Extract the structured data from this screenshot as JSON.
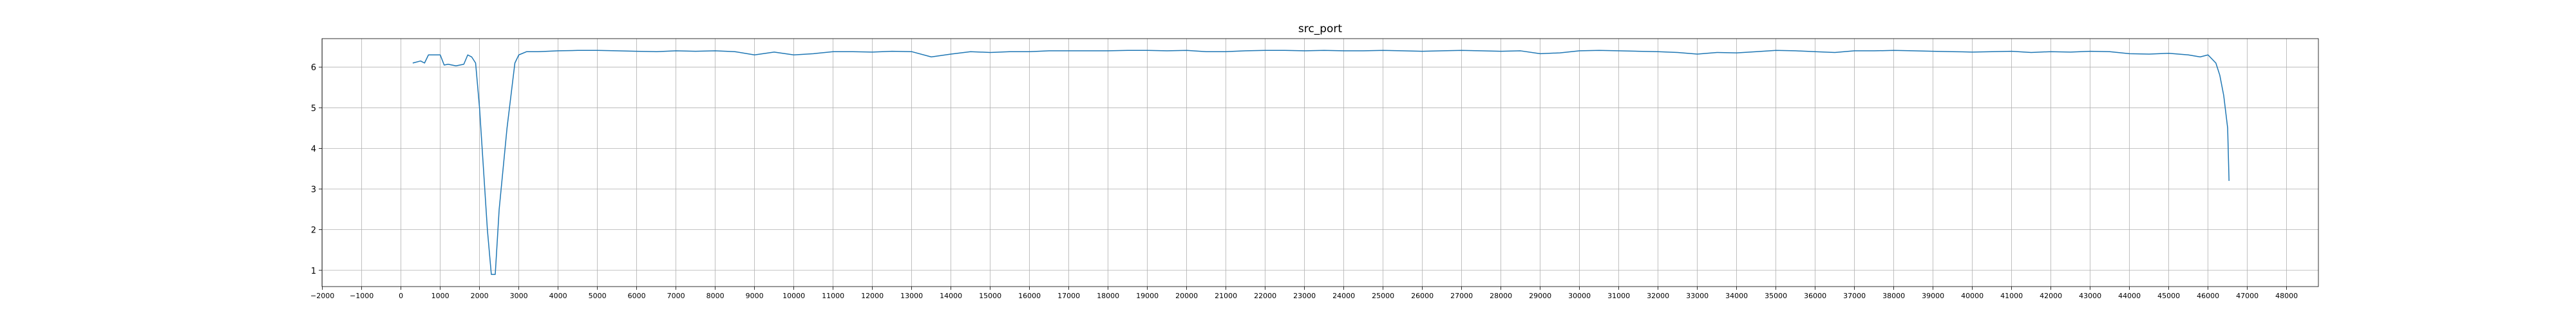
{
  "chart_data": {
    "type": "line",
    "title": "src_port",
    "x": [
      300,
      500,
      600,
      700,
      1000,
      1100,
      1200,
      1400,
      1600,
      1700,
      1800,
      1900,
      2000,
      2100,
      2200,
      2300,
      2400,
      2500,
      2700,
      2900,
      3000,
      3200,
      3500,
      4000,
      4500,
      5000,
      5500,
      6000,
      6500,
      7000,
      7500,
      8000,
      8500,
      9000,
      9500,
      10000,
      10500,
      11000,
      11500,
      12000,
      12500,
      13000,
      13500,
      14000,
      14500,
      15000,
      15500,
      16000,
      16500,
      17000,
      17500,
      18000,
      18500,
      19000,
      19500,
      20000,
      20500,
      21000,
      21500,
      22000,
      22500,
      23000,
      23500,
      24000,
      24500,
      25000,
      25500,
      26000,
      26500,
      27000,
      27500,
      28000,
      28500,
      29000,
      29500,
      30000,
      30500,
      31000,
      31500,
      32000,
      32500,
      33000,
      33500,
      34000,
      34500,
      35000,
      35500,
      36000,
      36500,
      37000,
      37500,
      38000,
      38500,
      39000,
      39500,
      40000,
      40500,
      41000,
      41500,
      42000,
      42500,
      43000,
      43500,
      44000,
      44500,
      45000,
      45500,
      45800,
      46000,
      46200,
      46300,
      46400,
      46500,
      46535
    ],
    "series": [
      {
        "color": "#1f77b4",
        "values": [
          6.1,
          6.15,
          6.1,
          6.3,
          6.3,
          6.05,
          6.07,
          6.03,
          6.07,
          6.3,
          6.25,
          6.1,
          5.0,
          3.5,
          2.0,
          0.9,
          0.9,
          2.5,
          4.5,
          6.1,
          6.3,
          6.38,
          6.38,
          6.4,
          6.41,
          6.41,
          6.4,
          6.39,
          6.38,
          6.4,
          6.39,
          6.4,
          6.38,
          6.3,
          6.37,
          6.3,
          6.33,
          6.38,
          6.38,
          6.37,
          6.39,
          6.38,
          6.25,
          6.32,
          6.38,
          6.36,
          6.38,
          6.38,
          6.4,
          6.4,
          6.4,
          6.4,
          6.41,
          6.41,
          6.4,
          6.41,
          6.38,
          6.38,
          6.4,
          6.41,
          6.41,
          6.4,
          6.41,
          6.4,
          6.4,
          6.41,
          6.4,
          6.39,
          6.4,
          6.41,
          6.4,
          6.39,
          6.4,
          6.33,
          6.35,
          6.4,
          6.41,
          6.4,
          6.39,
          6.38,
          6.36,
          6.32,
          6.36,
          6.35,
          6.38,
          6.41,
          6.4,
          6.38,
          6.36,
          6.4,
          6.4,
          6.41,
          6.4,
          6.39,
          6.38,
          6.37,
          6.38,
          6.39,
          6.36,
          6.38,
          6.37,
          6.39,
          6.38,
          6.33,
          6.32,
          6.34,
          6.3,
          6.25,
          6.3,
          6.1,
          5.8,
          5.3,
          4.5,
          3.2
        ]
      }
    ],
    "xlim": [
      -2010,
      48810
    ],
    "ylim": [
      0.6,
      6.7
    ],
    "xticks": [
      {
        "value": -2000,
        "label": "−2000"
      },
      {
        "value": -1000,
        "label": "−1000"
      },
      0,
      1000,
      2000,
      3000,
      4000,
      5000,
      6000,
      7000,
      8000,
      9000,
      10000,
      11000,
      12000,
      13000,
      14000,
      15000,
      16000,
      17000,
      18000,
      19000,
      20000,
      21000,
      22000,
      23000,
      24000,
      25000,
      26000,
      27000,
      28000,
      29000,
      30000,
      31000,
      32000,
      33000,
      34000,
      35000,
      36000,
      37000,
      38000,
      39000,
      40000,
      41000,
      42000,
      43000,
      44000,
      45000,
      46000,
      47000,
      48000
    ],
    "yticks": [
      1,
      2,
      3,
      4,
      5,
      6
    ],
    "grid": true
  }
}
